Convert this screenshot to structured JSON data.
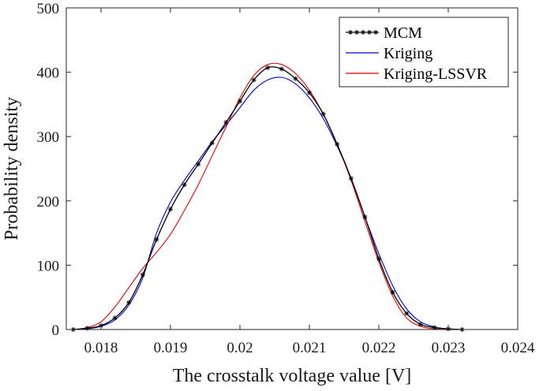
{
  "chart_data": {
    "type": "line",
    "title": "",
    "xlabel": "The crosstalk voltage value [V]",
    "ylabel": "Probability density",
    "xlim": [
      0.0175,
      0.024
    ],
    "ylim": [
      0,
      500
    ],
    "xticks": [
      0.018,
      0.019,
      0.02,
      0.021,
      0.022,
      0.023,
      0.024
    ],
    "xtick_labels": [
      "0.018",
      "0.019",
      "0.02",
      "0.021",
      "0.022",
      "0.023",
      "0.024"
    ],
    "yticks": [
      0,
      100,
      200,
      300,
      400,
      500
    ],
    "ytick_labels": [
      "0",
      "100",
      "200",
      "300",
      "400",
      "500"
    ],
    "grid": false,
    "legend_position": "top-right",
    "series": [
      {
        "name": "MCM",
        "color": "#000000",
        "marker": "star",
        "x": [
          0.0176,
          0.0178,
          0.018,
          0.0182,
          0.0184,
          0.0186,
          0.0188,
          0.019,
          0.0192,
          0.0194,
          0.0196,
          0.0198,
          0.02,
          0.0202,
          0.0204,
          0.0206,
          0.0208,
          0.021,
          0.0212,
          0.0214,
          0.0216,
          0.0218,
          0.022,
          0.0222,
          0.0224,
          0.0226,
          0.0228,
          0.023,
          0.0232
        ],
        "y": [
          0,
          2,
          6,
          18,
          42,
          85,
          140,
          187,
          225,
          257,
          290,
          322,
          355,
          388,
          407,
          405,
          390,
          368,
          335,
          288,
          235,
          175,
          110,
          58,
          25,
          8,
          3,
          1,
          0
        ]
      },
      {
        "name": "Kriging",
        "color": "#0000cc",
        "x": [
          0.0176,
          0.0178,
          0.018,
          0.0182,
          0.0184,
          0.0186,
          0.0188,
          0.019,
          0.0192,
          0.0194,
          0.0196,
          0.0198,
          0.02,
          0.0202,
          0.0204,
          0.0206,
          0.0208,
          0.021,
          0.0212,
          0.0214,
          0.0216,
          0.0218,
          0.022,
          0.0222,
          0.0224,
          0.0226,
          0.0228,
          0.023,
          0.0232
        ],
        "y": [
          0,
          1,
          5,
          15,
          38,
          80,
          150,
          198,
          232,
          262,
          292,
          318,
          345,
          372,
          388,
          392,
          382,
          360,
          328,
          285,
          235,
          175,
          118,
          68,
          32,
          12,
          4,
          1,
          0
        ]
      },
      {
        "name": "Kriging-LSSVR",
        "color": "#e60000",
        "x": [
          0.0176,
          0.0178,
          0.018,
          0.0182,
          0.0184,
          0.0186,
          0.0188,
          0.019,
          0.0192,
          0.0194,
          0.0196,
          0.0198,
          0.02,
          0.0202,
          0.0204,
          0.0206,
          0.0208,
          0.021,
          0.0212,
          0.0214,
          0.0216,
          0.0218,
          0.022,
          0.0222,
          0.0224,
          0.0226,
          0.0228,
          0.023,
          0.0232
        ],
        "y": [
          0,
          3,
          12,
          35,
          65,
          95,
          120,
          148,
          185,
          225,
          270,
          315,
          360,
          395,
          412,
          412,
          398,
          372,
          335,
          288,
          232,
          168,
          105,
          52,
          18,
          5,
          1,
          0,
          0
        ]
      }
    ]
  }
}
